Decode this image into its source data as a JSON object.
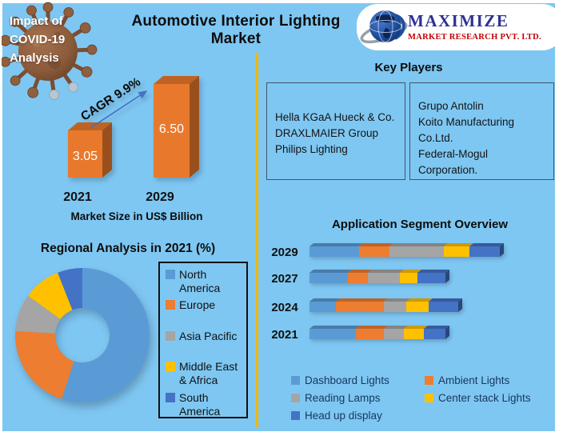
{
  "page": {
    "background": "#7EC7F2",
    "title": "Automotive Interior Lighting Market"
  },
  "covid_badge": {
    "lines": [
      "Impact of",
      "COVID-19",
      "Analysis"
    ]
  },
  "logo": {
    "company": "MAXIMIZE",
    "subtitle": "MARKET RESEARCH PVT. LTD.",
    "company_color": "#2E3192",
    "subtitle_color": "#C00000"
  },
  "key_players": {
    "title": "Key Players",
    "boxes": [
      {
        "lines": [
          "Hella KGaA Hueck & Co.",
          "DRAXLMAIER Group",
          "Philips Lighting"
        ]
      },
      {
        "lines": [
          "Grupo Antolin",
          "Koito Manufacturing",
          "Co.Ltd.",
          "Federal-Mogul",
          "Corporation."
        ]
      }
    ]
  },
  "chart_data": [
    {
      "type": "bar",
      "title": "Market Size in US$ Billion",
      "categories": [
        "2021",
        "2029"
      ],
      "values": [
        3.05,
        6.5
      ],
      "data_labels": [
        "3.05",
        "6.50"
      ],
      "annotation": "CAGR 9.9%",
      "bar_color": "#E8792C",
      "style": "3d-column",
      "ylabel": "US$ Billion"
    },
    {
      "type": "pie",
      "subtype": "donut",
      "title": "Regional Analysis in 2021 (%)",
      "labels": [
        "North America",
        "Europe",
        "Asia Pacific",
        "Middle East & Africa",
        "South America"
      ],
      "values": [
        55,
        21,
        9,
        9,
        6
      ],
      "colors": [
        "#5B9BD5",
        "#ED7D31",
        "#A5A5A5",
        "#FFC000",
        "#4472C4"
      ],
      "legend_position": "right"
    },
    {
      "type": "stacked-bar-horizontal",
      "title": "Application Segment Overview",
      "categories": [
        "2029",
        "2027",
        "2024",
        "2021"
      ],
      "units": "relative-width",
      "series": [
        {
          "name": "Dashboard Lights",
          "color": "#5B9BD5",
          "values": [
            62,
            48,
            33,
            58
          ]
        },
        {
          "name": "Ambient Lights",
          "color": "#ED7D31",
          "values": [
            38,
            25,
            60,
            35
          ]
        },
        {
          "name": "Reading Lamps",
          "color": "#A5A5A5",
          "values": [
            68,
            40,
            28,
            25
          ]
        },
        {
          "name": "Center stack Lights",
          "color": "#FFC000",
          "values": [
            32,
            22,
            28,
            25
          ]
        },
        {
          "name": "Head up display",
          "color": "#4472C4",
          "values": [
            38,
            35,
            37,
            27
          ]
        }
      ],
      "legend_position": "bottom"
    }
  ]
}
